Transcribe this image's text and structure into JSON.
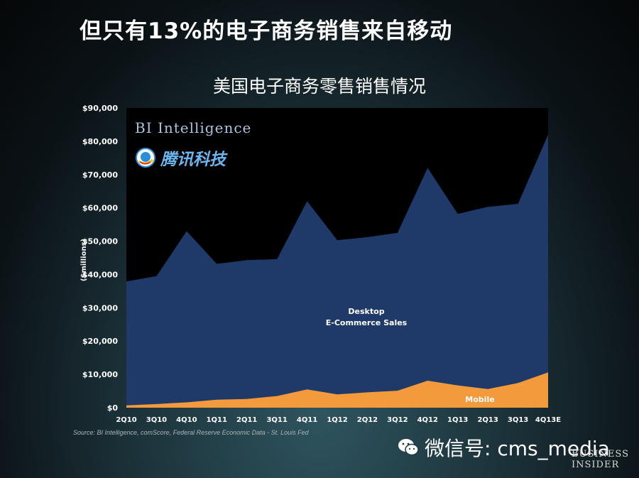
{
  "headline": "但只有13%的电子商务销售来自移动",
  "source_note": "Source: BI Intelligence, comScore, Federal Reserve Economic Data - St. Louis Fed",
  "watermark": {
    "icon": "wechat-icon",
    "text": "微信号: cms_media"
  },
  "brands": {
    "bi_intelligence": "BI Intelligence",
    "tencent_tech": "腾讯科技",
    "business_insider_line1": "BUSINESS",
    "business_insider_line2": "INSIDER"
  },
  "colors": {
    "desktop": "#1f3a68",
    "mobile": "#f39a3c",
    "plot_bg": "#000000"
  },
  "chart_data": {
    "type": "area",
    "title": "美国电子商务零售销售情况",
    "ylabel": "($millions)",
    "xlabel": "",
    "ylim": [
      0,
      90000
    ],
    "yticks": [
      0,
      10000,
      20000,
      30000,
      40000,
      50000,
      60000,
      70000,
      80000,
      90000
    ],
    "ytick_labels": [
      "$0",
      "$10,000",
      "$20,000",
      "$30,000",
      "$40,000",
      "$50,000",
      "$60,000",
      "$70,000",
      "$80,000",
      "$90,000"
    ],
    "categories": [
      "2Q10",
      "3Q10",
      "4Q10",
      "1Q11",
      "2Q11",
      "3Q11",
      "4Q11",
      "1Q12",
      "2Q12",
      "3Q12",
      "4Q12",
      "1Q13",
      "2Q13",
      "3Q13",
      "4Q13E"
    ],
    "stacked": true,
    "grid": false,
    "series": [
      {
        "name": "Mobile",
        "values": [
          700,
          1100,
          1600,
          2400,
          2600,
          3500,
          5500,
          4000,
          4600,
          5100,
          8100,
          6700,
          5600,
          7400,
          10600
        ]
      },
      {
        "name": "Desktop E-Commerce Sales",
        "values": [
          37200,
          38400,
          51400,
          40800,
          41700,
          41100,
          56500,
          46300,
          46600,
          47400,
          63900,
          51500,
          54700,
          53800,
          71400
        ]
      }
    ],
    "series_labels": {
      "desktop_line1": "Desktop",
      "desktop_line2": "E-Commerce Sales",
      "mobile": "Mobile"
    }
  }
}
